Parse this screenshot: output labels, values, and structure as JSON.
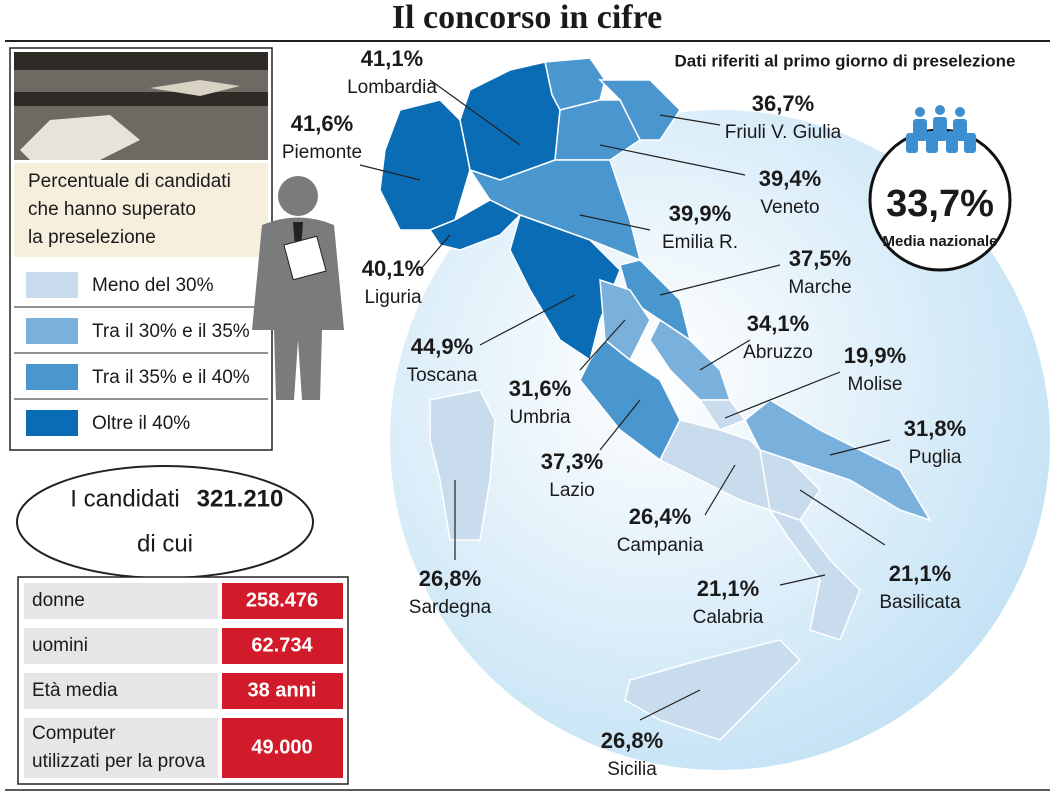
{
  "header": {
    "title": "Il concorso in cifre",
    "note": "Dati riferiti al primo giorno di preselezione"
  },
  "legend": {
    "title": [
      "Percentuale di candidati",
      "che hanno superato",
      "la preselezione"
    ],
    "items": [
      {
        "label": "Meno del 30%",
        "color": "#c9dcee"
      },
      {
        "label": "Tra il 30% e il 35%",
        "color": "#7ab0dc"
      },
      {
        "label": "Tra il 35% e il 40%",
        "color": "#4a97d0"
      },
      {
        "label": "Oltre il 40%",
        "color": "#0a6cb5"
      }
    ]
  },
  "map": {
    "regions": [
      {
        "name": "Lombardia",
        "value": "41,1%",
        "color": "#0a6cb5"
      },
      {
        "name": "Piemonte",
        "value": "41,6%",
        "color": "#0a6cb5"
      },
      {
        "name": "Friuli V. Giulia",
        "value": "36,7%",
        "color": "#4a97d0"
      },
      {
        "name": "Veneto",
        "value": "39,4%",
        "color": "#4a97d0"
      },
      {
        "name": "Emilia R.",
        "value": "39,9%",
        "color": "#4a97d0"
      },
      {
        "name": "Liguria",
        "value": "40,1%",
        "color": "#0a6cb5"
      },
      {
        "name": "Marche",
        "value": "37,5%",
        "color": "#4a97d0"
      },
      {
        "name": "Toscana",
        "value": "44,9%",
        "color": "#0a6cb5"
      },
      {
        "name": "Abruzzo",
        "value": "34,1%",
        "color": "#7ab0dc"
      },
      {
        "name": "Molise",
        "value": "19,9%",
        "color": "#c9dcee"
      },
      {
        "name": "Umbria",
        "value": "31,6%",
        "color": "#7ab0dc"
      },
      {
        "name": "Puglia",
        "value": "31,8%",
        "color": "#7ab0dc"
      },
      {
        "name": "Lazio",
        "value": "37,3%",
        "color": "#4a97d0"
      },
      {
        "name": "Campania",
        "value": "26,4%",
        "color": "#c9dcee"
      },
      {
        "name": "Basilicata",
        "value": "21,1%",
        "color": "#c9dcee"
      },
      {
        "name": "Calabria",
        "value": "21,1%",
        "color": "#c9dcee"
      },
      {
        "name": "Sardegna",
        "value": "26,8%",
        "color": "#c9dcee"
      },
      {
        "name": "Sicilia",
        "value": "26,8%",
        "color": "#c9dcee"
      }
    ]
  },
  "national": {
    "value": "33,7%",
    "label": "Media nazionale"
  },
  "candidates": {
    "label": "I candidati",
    "total": "321.210",
    "sub": "di cui"
  },
  "table": {
    "rows": [
      [
        "donne",
        "258.476"
      ],
      [
        "uomini",
        "62.734"
      ],
      [
        "Età media",
        "38 anni"
      ],
      [
        [
          "Computer",
          "utilizzati per la prova"
        ],
        "49.000"
      ]
    ]
  }
}
